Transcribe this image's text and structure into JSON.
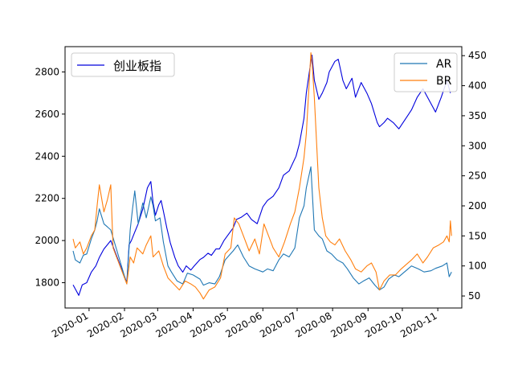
{
  "chart_data": {
    "type": "line",
    "title": "",
    "xlabel": "",
    "left_axis": {
      "ylabel": "",
      "ylim": [
        1680,
        2920
      ],
      "ticks": [
        1800,
        2000,
        2200,
        2400,
        2600,
        2800
      ]
    },
    "right_axis": {
      "ylabel": "",
      "ylim": [
        30,
        465
      ],
      "ticks": [
        50,
        100,
        150,
        200,
        250,
        300,
        350,
        400,
        450
      ]
    },
    "x_axis": {
      "range": [
        "2019-12-11",
        "2020-11-22"
      ],
      "tick_dates": [
        "2020-01-01",
        "2020-02-01",
        "2020-03-01",
        "2020-04-01",
        "2020-05-01",
        "2020-06-01",
        "2020-07-01",
        "2020-08-01",
        "2020-09-01",
        "2020-10-01",
        "2020-11-01"
      ],
      "tick_labels": [
        "2020-01",
        "2020-02",
        "2020-03",
        "2020-04",
        "2020-05",
        "2020-06",
        "2020-07",
        "2020-08",
        "2020-09",
        "2020-10",
        "2020-11"
      ]
    },
    "grid": false,
    "legend_left": {
      "placement": "upper-left",
      "entries": [
        "创业板指"
      ]
    },
    "legend_right": {
      "placement": "upper-right",
      "entries": [
        "AR",
        "BR"
      ]
    },
    "series": [
      {
        "name": "创业板指",
        "axis": "left",
        "color": "#0000dd",
        "points": [
          [
            "2019-12-18",
            1790
          ],
          [
            "2019-12-20",
            1770
          ],
          [
            "2019-12-23",
            1740
          ],
          [
            "2019-12-26",
            1790
          ],
          [
            "2019-12-30",
            1800
          ],
          [
            "2020-01-03",
            1850
          ],
          [
            "2020-01-07",
            1880
          ],
          [
            "2020-01-10",
            1920
          ],
          [
            "2020-01-14",
            1960
          ],
          [
            "2020-01-17",
            1980
          ],
          [
            "2020-01-20",
            2000
          ],
          [
            "2020-02-03",
            1800
          ],
          [
            "2020-02-05",
            1980
          ],
          [
            "2020-02-07",
            2000
          ],
          [
            "2020-02-10",
            2040
          ],
          [
            "2020-02-13",
            2080
          ],
          [
            "2020-02-17",
            2150
          ],
          [
            "2020-02-19",
            2200
          ],
          [
            "2020-02-21",
            2250
          ],
          [
            "2020-02-24",
            2280
          ],
          [
            "2020-02-26",
            2180
          ],
          [
            "2020-02-28",
            2120
          ],
          [
            "2020-03-02",
            2170
          ],
          [
            "2020-03-04",
            2190
          ],
          [
            "2020-03-06",
            2140
          ],
          [
            "2020-03-09",
            2060
          ],
          [
            "2020-03-12",
            1990
          ],
          [
            "2020-03-16",
            1920
          ],
          [
            "2020-03-19",
            1880
          ],
          [
            "2020-03-23",
            1850
          ],
          [
            "2020-03-26",
            1880
          ],
          [
            "2020-03-30",
            1860
          ],
          [
            "2020-04-02",
            1880
          ],
          [
            "2020-04-07",
            1910
          ],
          [
            "2020-04-10",
            1920
          ],
          [
            "2020-04-14",
            1940
          ],
          [
            "2020-04-17",
            1930
          ],
          [
            "2020-04-21",
            1960
          ],
          [
            "2020-04-24",
            1960
          ],
          [
            "2020-04-28",
            2000
          ],
          [
            "2020-05-06",
            2060
          ],
          [
            "2020-05-09",
            2100
          ],
          [
            "2020-05-13",
            2110
          ],
          [
            "2020-05-18",
            2130
          ],
          [
            "2020-05-22",
            2100
          ],
          [
            "2020-05-27",
            2080
          ],
          [
            "2020-06-01",
            2160
          ],
          [
            "2020-06-05",
            2190
          ],
          [
            "2020-06-10",
            2210
          ],
          [
            "2020-06-15",
            2250
          ],
          [
            "2020-06-19",
            2310
          ],
          [
            "2020-06-24",
            2330
          ],
          [
            "2020-06-30",
            2400
          ],
          [
            "2020-07-03",
            2460
          ],
          [
            "2020-07-07",
            2580
          ],
          [
            "2020-07-09",
            2700
          ],
          [
            "2020-07-13",
            2850
          ],
          [
            "2020-07-14",
            2880
          ],
          [
            "2020-07-16",
            2760
          ],
          [
            "2020-07-20",
            2670
          ],
          [
            "2020-07-23",
            2700
          ],
          [
            "2020-07-27",
            2750
          ],
          [
            "2020-07-29",
            2800
          ],
          [
            "2020-08-03",
            2850
          ],
          [
            "2020-08-06",
            2860
          ],
          [
            "2020-08-10",
            2760
          ],
          [
            "2020-08-13",
            2720
          ],
          [
            "2020-08-18",
            2770
          ],
          [
            "2020-08-21",
            2680
          ],
          [
            "2020-08-26",
            2750
          ],
          [
            "2020-08-31",
            2700
          ],
          [
            "2020-09-04",
            2650
          ],
          [
            "2020-09-09",
            2560
          ],
          [
            "2020-09-11",
            2540
          ],
          [
            "2020-09-15",
            2560
          ],
          [
            "2020-09-18",
            2580
          ],
          [
            "2020-09-23",
            2560
          ],
          [
            "2020-09-28",
            2530
          ],
          [
            "2020-10-09",
            2620
          ],
          [
            "2020-10-14",
            2680
          ],
          [
            "2020-10-19",
            2720
          ],
          [
            "2020-10-23",
            2680
          ],
          [
            "2020-10-27",
            2640
          ],
          [
            "2020-10-30",
            2610
          ],
          [
            "2020-11-04",
            2680
          ],
          [
            "2020-11-09",
            2760
          ],
          [
            "2020-11-12",
            2700
          ]
        ]
      },
      {
        "name": "AR",
        "axis": "right",
        "color": "#1f77b4",
        "points": [
          [
            "2019-12-18",
            125
          ],
          [
            "2019-12-20",
            110
          ],
          [
            "2019-12-24",
            105
          ],
          [
            "2019-12-27",
            118
          ],
          [
            "2019-12-30",
            120
          ],
          [
            "2020-01-03",
            145
          ],
          [
            "2020-01-06",
            160
          ],
          [
            "2020-01-08",
            175
          ],
          [
            "2020-01-10",
            195
          ],
          [
            "2020-01-14",
            170
          ],
          [
            "2020-01-17",
            165
          ],
          [
            "2020-01-20",
            160
          ],
          [
            "2020-02-03",
            70
          ],
          [
            "2020-02-06",
            160
          ],
          [
            "2020-02-08",
            195
          ],
          [
            "2020-02-10",
            225
          ],
          [
            "2020-02-13",
            170
          ],
          [
            "2020-02-17",
            205
          ],
          [
            "2020-02-20",
            180
          ],
          [
            "2020-02-24",
            215
          ],
          [
            "2020-02-26",
            200
          ],
          [
            "2020-02-28",
            175
          ],
          [
            "2020-03-03",
            180
          ],
          [
            "2020-03-06",
            140
          ],
          [
            "2020-03-10",
            100
          ],
          [
            "2020-03-13",
            90
          ],
          [
            "2020-03-18",
            75
          ],
          [
            "2020-03-23",
            70
          ],
          [
            "2020-03-27",
            88
          ],
          [
            "2020-04-01",
            85
          ],
          [
            "2020-04-07",
            78
          ],
          [
            "2020-04-10",
            68
          ],
          [
            "2020-04-15",
            72
          ],
          [
            "2020-04-20",
            70
          ],
          [
            "2020-04-24",
            82
          ],
          [
            "2020-04-29",
            110
          ],
          [
            "2020-05-06",
            125
          ],
          [
            "2020-05-10",
            135
          ],
          [
            "2020-05-15",
            115
          ],
          [
            "2020-05-20",
            100
          ],
          [
            "2020-05-25",
            95
          ],
          [
            "2020-06-01",
            90
          ],
          [
            "2020-06-05",
            95
          ],
          [
            "2020-06-10",
            92
          ],
          [
            "2020-06-15",
            110
          ],
          [
            "2020-06-19",
            120
          ],
          [
            "2020-06-24",
            115
          ],
          [
            "2020-06-29",
            130
          ],
          [
            "2020-07-03",
            180
          ],
          [
            "2020-07-07",
            200
          ],
          [
            "2020-07-09",
            230
          ],
          [
            "2020-07-13",
            265
          ],
          [
            "2020-07-14",
            230
          ],
          [
            "2020-07-16",
            160
          ],
          [
            "2020-07-20",
            150
          ],
          [
            "2020-07-23",
            145
          ],
          [
            "2020-07-27",
            125
          ],
          [
            "2020-07-31",
            120
          ],
          [
            "2020-08-05",
            110
          ],
          [
            "2020-08-10",
            105
          ],
          [
            "2020-08-14",
            95
          ],
          [
            "2020-08-19",
            80
          ],
          [
            "2020-08-24",
            70
          ],
          [
            "2020-08-28",
            75
          ],
          [
            "2020-09-02",
            80
          ],
          [
            "2020-09-07",
            68
          ],
          [
            "2020-09-11",
            60
          ],
          [
            "2020-09-15",
            65
          ],
          [
            "2020-09-19",
            78
          ],
          [
            "2020-09-24",
            85
          ],
          [
            "2020-09-28",
            82
          ],
          [
            "2020-10-09",
            100
          ],
          [
            "2020-10-15",
            95
          ],
          [
            "2020-10-20",
            90
          ],
          [
            "2020-10-26",
            92
          ],
          [
            "2020-10-30",
            96
          ],
          [
            "2020-11-05",
            100
          ],
          [
            "2020-11-09",
            105
          ],
          [
            "2020-11-11",
            82
          ],
          [
            "2020-11-13",
            90
          ]
        ]
      },
      {
        "name": "BR",
        "axis": "right",
        "color": "#ff7f0e",
        "points": [
          [
            "2019-12-18",
            145
          ],
          [
            "2019-12-20",
            130
          ],
          [
            "2019-12-24",
            140
          ],
          [
            "2019-12-27",
            120
          ],
          [
            "2019-12-30",
            130
          ],
          [
            "2020-01-03",
            150
          ],
          [
            "2020-01-06",
            160
          ],
          [
            "2020-01-08",
            200
          ],
          [
            "2020-01-10",
            235
          ],
          [
            "2020-01-14",
            190
          ],
          [
            "2020-01-17",
            210
          ],
          [
            "2020-01-20",
            235
          ],
          [
            "2020-01-22",
            130
          ],
          [
            "2020-02-03",
            70
          ],
          [
            "2020-02-06",
            115
          ],
          [
            "2020-02-09",
            105
          ],
          [
            "2020-02-12",
            130
          ],
          [
            "2020-02-17",
            120
          ],
          [
            "2020-02-20",
            135
          ],
          [
            "2020-02-24",
            150
          ],
          [
            "2020-02-26",
            115
          ],
          [
            "2020-03-02",
            125
          ],
          [
            "2020-03-06",
            100
          ],
          [
            "2020-03-10",
            80
          ],
          [
            "2020-03-15",
            70
          ],
          [
            "2020-03-20",
            60
          ],
          [
            "2020-03-25",
            75
          ],
          [
            "2020-03-30",
            70
          ],
          [
            "2020-04-03",
            65
          ],
          [
            "2020-04-07",
            55
          ],
          [
            "2020-04-10",
            45
          ],
          [
            "2020-04-15",
            60
          ],
          [
            "2020-04-20",
            65
          ],
          [
            "2020-04-25",
            80
          ],
          [
            "2020-04-29",
            120
          ],
          [
            "2020-05-04",
            130
          ],
          [
            "2020-05-07",
            180
          ],
          [
            "2020-05-11",
            170
          ],
          [
            "2020-05-15",
            150
          ],
          [
            "2020-05-20",
            125
          ],
          [
            "2020-05-25",
            145
          ],
          [
            "2020-05-29",
            120
          ],
          [
            "2020-06-02",
            170
          ],
          [
            "2020-06-06",
            150
          ],
          [
            "2020-06-10",
            130
          ],
          [
            "2020-06-15",
            115
          ],
          [
            "2020-06-20",
            140
          ],
          [
            "2020-06-25",
            170
          ],
          [
            "2020-06-29",
            190
          ],
          [
            "2020-07-03",
            230
          ],
          [
            "2020-07-07",
            280
          ],
          [
            "2020-07-09",
            320
          ],
          [
            "2020-07-13",
            455
          ],
          [
            "2020-07-14",
            440
          ],
          [
            "2020-07-16",
            380
          ],
          [
            "2020-07-20",
            230
          ],
          [
            "2020-07-23",
            180
          ],
          [
            "2020-07-26",
            150
          ],
          [
            "2020-07-30",
            140
          ],
          [
            "2020-08-03",
            135
          ],
          [
            "2020-08-07",
            145
          ],
          [
            "2020-08-12",
            125
          ],
          [
            "2020-08-17",
            110
          ],
          [
            "2020-08-21",
            95
          ],
          [
            "2020-08-26",
            90
          ],
          [
            "2020-08-31",
            100
          ],
          [
            "2020-09-04",
            105
          ],
          [
            "2020-09-08",
            90
          ],
          [
            "2020-09-11",
            60
          ],
          [
            "2020-09-15",
            75
          ],
          [
            "2020-09-20",
            85
          ],
          [
            "2020-09-25",
            85
          ],
          [
            "2020-09-30",
            95
          ],
          [
            "2020-10-09",
            110
          ],
          [
            "2020-10-14",
            120
          ],
          [
            "2020-10-19",
            105
          ],
          [
            "2020-10-23",
            115
          ],
          [
            "2020-10-28",
            130
          ],
          [
            "2020-11-02",
            135
          ],
          [
            "2020-11-06",
            140
          ],
          [
            "2020-11-09",
            150
          ],
          [
            "2020-11-11",
            140
          ],
          [
            "2020-11-12",
            175
          ],
          [
            "2020-11-13",
            150
          ]
        ]
      }
    ]
  }
}
